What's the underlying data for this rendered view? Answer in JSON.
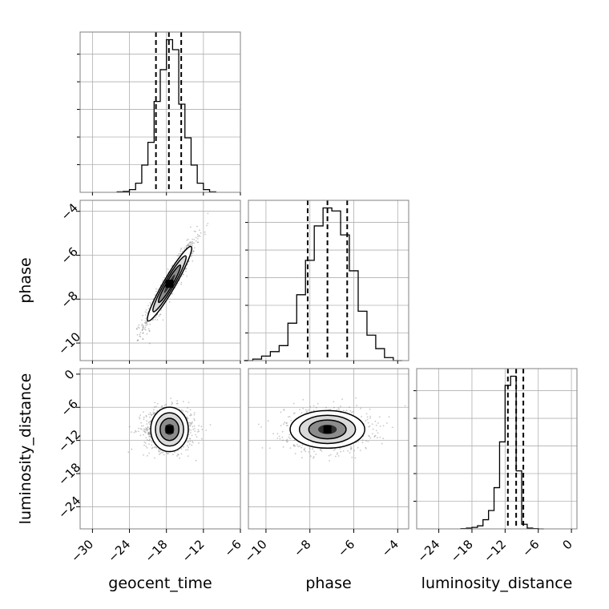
{
  "chart_data": {
    "type": "corner",
    "parameters": [
      "geocent_time",
      "phase",
      "luminosity_distance"
    ],
    "axes": {
      "geocent_time": {
        "range": [
          -32,
          -6
        ],
        "ticks": [
          -30,
          -24,
          -18,
          -12,
          -6
        ],
        "tick_labels": [
          "−30",
          "−24",
          "−18",
          "−12",
          "−6"
        ]
      },
      "phase": {
        "range": [
          -10.8,
          -3.5
        ],
        "ticks": [
          -10,
          -8,
          -6,
          -4
        ],
        "tick_labels": [
          "−10",
          "−8",
          "−6",
          "−4"
        ]
      },
      "luminosity_distance": {
        "range": [
          -28,
          1
        ],
        "ticks": [
          -24,
          -18,
          -12,
          -6,
          0
        ],
        "tick_labels": [
          "−24",
          "−18",
          "−12",
          "−6",
          "0"
        ]
      }
    },
    "histograms": {
      "geocent_time": {
        "edges": [
          -26,
          -25,
          -24,
          -23,
          -22,
          -21,
          -20,
          -19,
          -18,
          -17,
          -16,
          -15,
          -14,
          -13,
          -12,
          -11,
          -10
        ],
        "counts": [
          0.005,
          0.01,
          0.03,
          0.1,
          0.3,
          0.55,
          1.0,
          1.35,
          1.68,
          1.57,
          0.97,
          0.6,
          0.3,
          0.1,
          0.03,
          0.005
        ],
        "quantiles": [
          -19.7,
          -17.6,
          -15.6
        ]
      },
      "phase": {
        "edges": [
          -11.0,
          -10.6,
          -10.2,
          -9.8,
          -9.4,
          -9.0,
          -8.6,
          -8.2,
          -7.8,
          -7.4,
          -7.0,
          -6.6,
          -6.2,
          -5.8,
          -5.4,
          -5.0,
          -4.6,
          -4.2,
          -3.8
        ],
        "counts": [
          0.0,
          0.01,
          0.03,
          0.06,
          0.1,
          0.25,
          0.44,
          0.67,
          0.9,
          1.02,
          1.0,
          0.84,
          0.6,
          0.33,
          0.17,
          0.08,
          0.02,
          0.0
        ],
        "quantiles": [
          -8.1,
          -7.2,
          -6.3
        ]
      },
      "luminosity_distance": {
        "edges": [
          -20,
          -19,
          -18,
          -17,
          -16,
          -15,
          -14,
          -13,
          -12,
          -11,
          -10,
          -9,
          -8,
          -7,
          -6,
          -5
        ],
        "counts": [
          0.002,
          0.005,
          0.01,
          0.02,
          0.06,
          0.12,
          0.27,
          0.57,
          0.94,
          1.0,
          0.38,
          0.03,
          0.005,
          0.002,
          0.0
        ],
        "quantiles": [
          -11.5,
          -10.0,
          -8.7
        ]
      }
    },
    "posterior_2d": [
      {
        "x": "geocent_time",
        "y": "phase",
        "mean": [
          -17.5,
          -7.3
        ],
        "std": [
          1.8,
          0.85
        ],
        "correlation": 0.95
      },
      {
        "x": "geocent_time",
        "y": "luminosity_distance",
        "mean": [
          -17.5,
          -10.0
        ],
        "std": [
          1.8,
          1.7
        ],
        "correlation": 0.0
      },
      {
        "x": "phase",
        "y": "luminosity_distance",
        "mean": [
          -7.2,
          -10.0
        ],
        "std": [
          0.85,
          1.7
        ],
        "correlation": 0.0
      }
    ],
    "contour_levels_sigma": [
      0.5,
      1.0,
      1.5,
      2.0
    ],
    "grid": true,
    "labels": {
      "xlabels": [
        "geocent_time",
        "phase",
        "luminosity_distance"
      ],
      "ylabels": [
        "phase",
        "luminosity_distance"
      ]
    },
    "colors": {
      "line": "#000000",
      "grid": "#b0b0b0",
      "frame": "#808080",
      "points": "#606060",
      "fill_levels": [
        "#ffffff",
        "#d9d9d9",
        "#8c8c8c",
        "#303030"
      ]
    }
  }
}
